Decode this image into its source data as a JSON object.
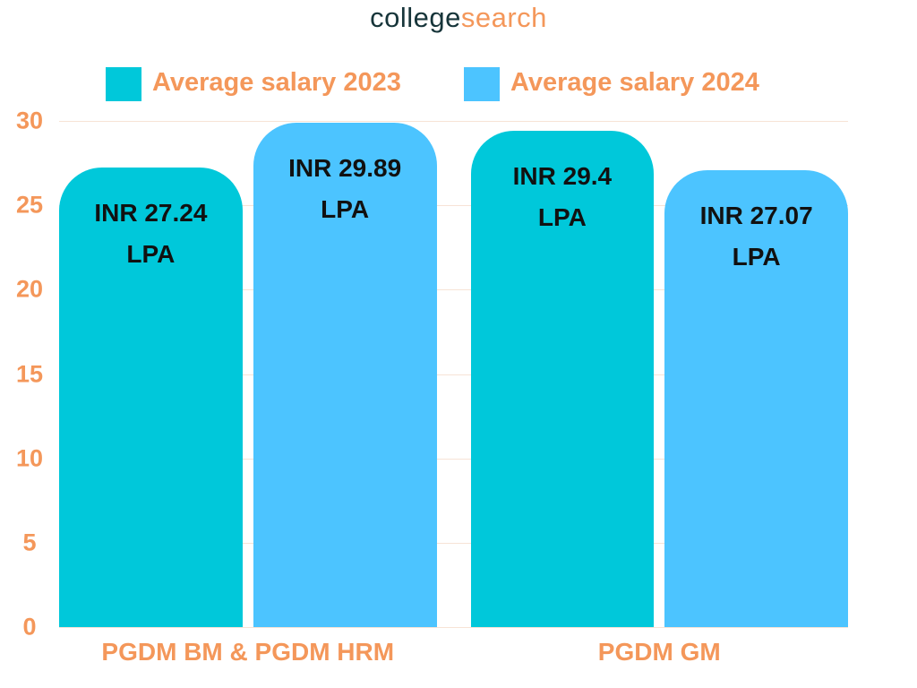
{
  "logo": {
    "part1": "college",
    "part2": "search"
  },
  "chart_data": {
    "type": "bar",
    "categories": [
      "PGDM BM & PGDM HRM",
      "PGDM GM"
    ],
    "series": [
      {
        "name": "Average salary 2023",
        "color": "#00c8da",
        "values": [
          27.24,
          29.4
        ],
        "value_labels": [
          "INR 27.24 LPA",
          "INR 29.4 LPA"
        ]
      },
      {
        "name": "Average salary 2024",
        "color": "#4cc4ff",
        "values": [
          29.89,
          27.07
        ],
        "value_labels": [
          "INR 29.89 LPA",
          "INR 27.07 LPA"
        ]
      }
    ],
    "ylim": [
      0,
      30
    ],
    "yticks": [
      0,
      5,
      10,
      15,
      20,
      25,
      30
    ],
    "grid": true,
    "legend": "top"
  }
}
